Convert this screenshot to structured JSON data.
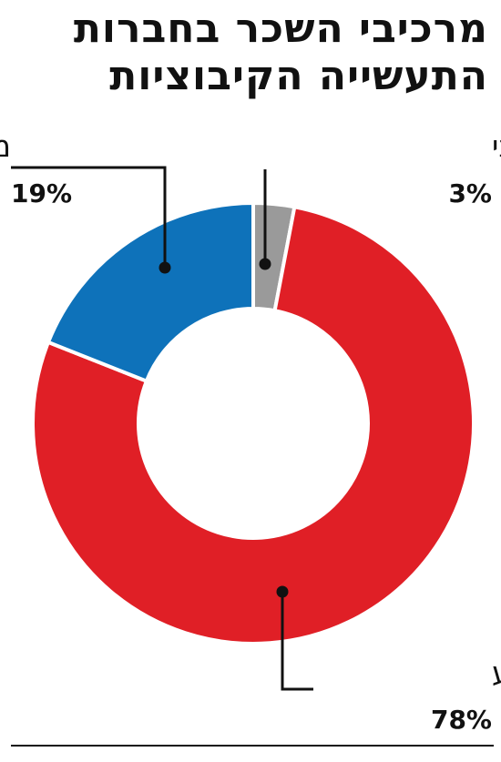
{
  "title": "מרכיבי השכר בחברות התעשייה הקיבוציות",
  "chart_data": {
    "type": "pie",
    "style": "donut",
    "title": "מרכיבי השכר בחברות התעשייה הקיבוציות",
    "unit": "%",
    "slices": [
      {
        "name": "תגמול הוני",
        "value": 3,
        "label": "3%",
        "color": "#9a9a9a"
      },
      {
        "name": "שכר קבוע",
        "value": 78,
        "label": "78%",
        "color": "#e01f26"
      },
      {
        "name": "מענק",
        "value": 19,
        "label": "19%",
        "color": "#0e72ba"
      }
    ],
    "start_angle_deg": 0,
    "direction": "clockwise",
    "legend": "none"
  },
  "colors": {
    "text": "#111111",
    "background": "#ffffff",
    "separator": "#ffffff"
  }
}
